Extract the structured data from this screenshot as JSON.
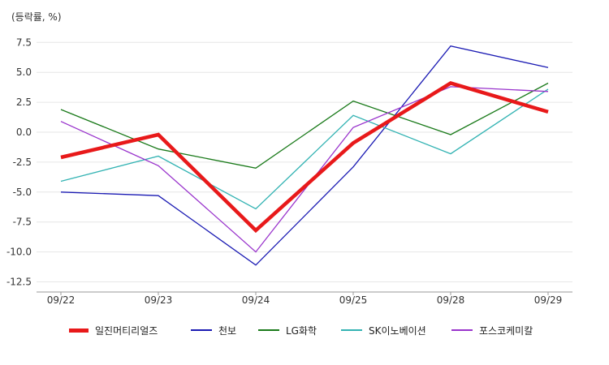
{
  "chart_data": {
    "type": "line",
    "unit_label": "(등락률, %)",
    "categories": [
      "09/22",
      "09/23",
      "09/24",
      "09/25",
      "09/28",
      "09/29"
    ],
    "yticks": [
      7.5,
      5.0,
      2.5,
      0.0,
      -2.5,
      -5.0,
      -7.5,
      -10.0,
      -12.5
    ],
    "ytick_labels": [
      "7.5",
      "5.0",
      "2.5",
      "0.0",
      "-2.5",
      "-5.0",
      "-7.5",
      "-10.0",
      "-12.5"
    ],
    "ylim": [
      -13.3,
      9.0
    ],
    "grid": true,
    "legend_position": "bottom",
    "series": [
      {
        "name": "일진머티리얼즈",
        "color": "#e8191a",
        "emphasis": true,
        "values": [
          -2.1,
          -0.2,
          -8.2,
          -0.9,
          4.1,
          1.7
        ]
      },
      {
        "name": "천보",
        "color": "#1a1ab3",
        "emphasis": false,
        "values": [
          -5.0,
          -5.3,
          -11.1,
          -2.9,
          7.2,
          5.4
        ]
      },
      {
        "name": "LG화학",
        "color": "#1a7a1a",
        "emphasis": false,
        "values": [
          1.9,
          -1.4,
          -3.0,
          2.6,
          -0.2,
          4.1
        ]
      },
      {
        "name": "SK이노베이션",
        "color": "#33b3b3",
        "emphasis": false,
        "values": [
          -4.1,
          -2.0,
          -6.4,
          1.4,
          -1.8,
          3.6
        ]
      },
      {
        "name": "포스코케미칼",
        "color": "#9933cc",
        "emphasis": false,
        "values": [
          0.9,
          -2.8,
          -10.0,
          0.4,
          3.8,
          3.4
        ]
      }
    ]
  }
}
